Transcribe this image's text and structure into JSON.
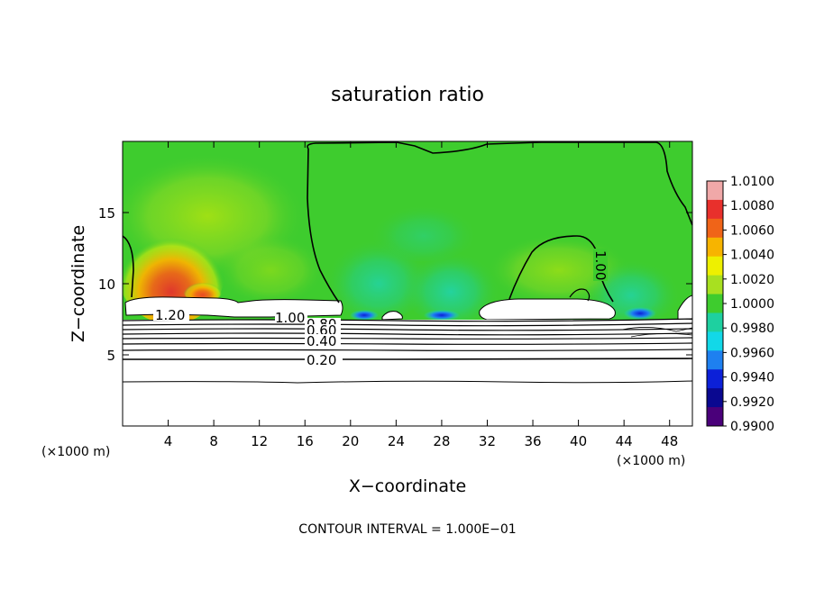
{
  "chart_data": {
    "type": "heatmap",
    "title": "saturation ratio",
    "xlabel": "X−coordinate",
    "ylabel": "Z−coordinate",
    "x_unit_left": "(×1000 m)",
    "x_unit_right": "(×1000 m)",
    "xlim": [
      0,
      50
    ],
    "ylim": [
      0,
      20
    ],
    "x_ticks": [
      4,
      8,
      12,
      16,
      20,
      24,
      28,
      32,
      36,
      40,
      44,
      48
    ],
    "y_ticks": [
      5,
      10,
      15
    ],
    "footer": "CONTOUR INTERVAL = 1.000E−01",
    "colorbar": {
      "labels": [
        "1.0100",
        "1.0080",
        "1.0060",
        "1.0040",
        "1.0020",
        "1.0000",
        "0.9980",
        "0.9960",
        "0.9940",
        "0.9920",
        "0.9900"
      ],
      "colors": [
        "#f0a8a8",
        "#e8302c",
        "#f06418",
        "#f7b400",
        "#eef000",
        "#a8e020",
        "#3ecc2e",
        "#1ed0a0",
        "#12d8e8",
        "#1e80f0",
        "#0c20d8",
        "#0a0890",
        "#4a007a"
      ]
    },
    "contour_labels": [
      {
        "text": "1.20",
        "x": 3.2,
        "z": 7.8
      },
      {
        "text": "1.00",
        "x": 14.2,
        "z": 7.4
      },
      {
        "text": "0.80",
        "x": 16.6,
        "z": 6.9
      },
      {
        "text": "0.60",
        "x": 16.6,
        "z": 6.3
      },
      {
        "text": "0.40",
        "x": 16.6,
        "z": 5.6
      },
      {
        "text": "0.20",
        "x": 16.6,
        "z": 4.6
      },
      {
        "text": "1.00",
        "x": 42.0,
        "z": 10.6
      }
    ]
  }
}
